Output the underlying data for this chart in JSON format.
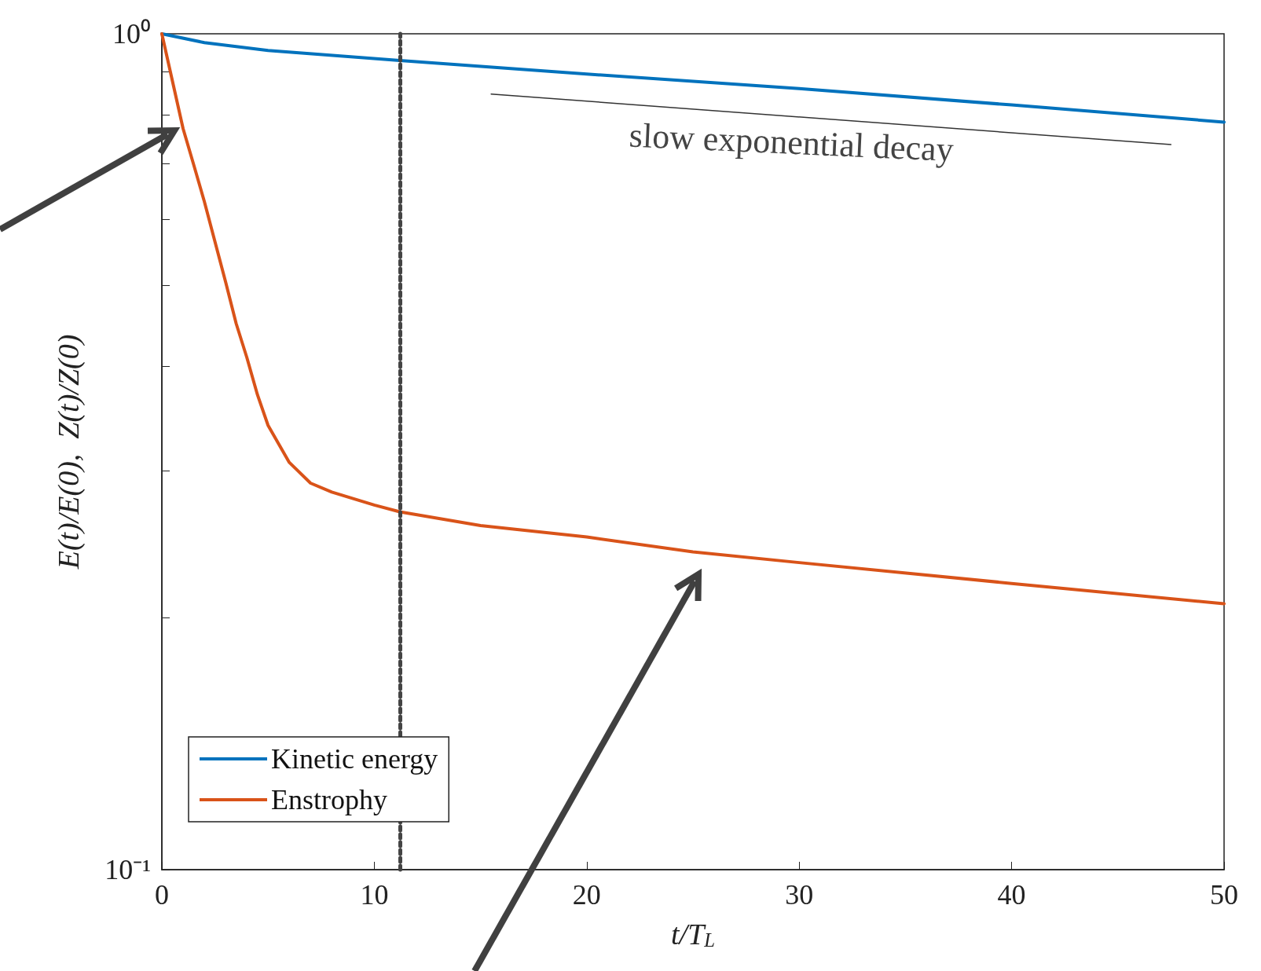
{
  "chart_data": {
    "type": "line",
    "xlabel": "t/T$_{L}$",
    "ylabel": "E(t)/E(0),  Z(t)/Z(0)",
    "log": "y",
    "xlim": [
      0,
      50
    ],
    "xticks": [
      0,
      10,
      20,
      30,
      40,
      50
    ],
    "ylim": [
      0.1,
      1
    ],
    "yticks": [
      {
        "value": 0.1,
        "label": "10⁻¹"
      },
      {
        "value": 0.2,
        "label": null
      },
      {
        "value": 0.3,
        "label": null
      },
      {
        "value": 0.4,
        "label": null
      },
      {
        "value": 0.5,
        "label": null
      },
      {
        "value": 0.6,
        "label": null
      },
      {
        "value": 0.7,
        "label": null
      },
      {
        "value": 0.8,
        "label": null
      },
      {
        "value": 0.9,
        "label": null
      },
      {
        "value": 1,
        "label": "10⁰"
      }
    ],
    "grid": false,
    "legend": "bottom left",
    "line_style": "solid",
    "marker": "none",
    "series": [
      {
        "name": "Kinetic energy",
        "color": "#0072bd",
        "x": [
          0,
          2,
          5,
          11.2,
          20,
          30,
          40,
          50
        ],
        "values": [
          1,
          0.976,
          0.955,
          0.929,
          0.895,
          0.86,
          0.822,
          0.784
        ]
      },
      {
        "name": "Enstrophy",
        "color": "#d95319",
        "x": [
          0,
          1,
          1.5,
          2,
          3,
          3.5,
          4,
          4.5,
          5,
          6,
          7,
          8,
          10,
          11.2,
          15,
          20,
          25,
          30,
          40,
          50
        ],
        "values": [
          1,
          0.77,
          0.697,
          0.63,
          0.505,
          0.45,
          0.41,
          0.37,
          0.34,
          0.307,
          0.29,
          0.283,
          0.273,
          0.268,
          0.258,
          0.25,
          0.24,
          0.233,
          0.22,
          0.208
        ]
      },
      {
        "type": "line",
        "color": "#333333",
        "x": [
          15.5,
          47.5
        ],
        "values": [
          0.847,
          0.737
        ]
      }
    ],
    "ref_lines": [
      {
        "axis": "x",
        "value": 11.2,
        "color": "#444444",
        "line_style": "dotted"
      }
    ],
    "annotations": [
      "slow exponential decay"
    ]
  }
}
